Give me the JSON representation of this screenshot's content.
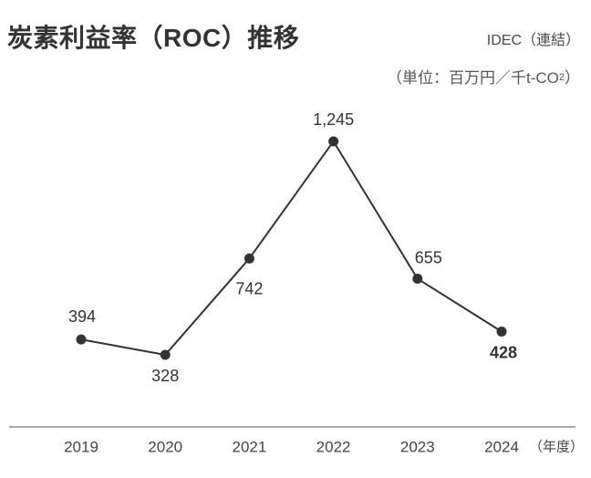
{
  "header": {
    "title": "炭素利益率（ROC）推移",
    "company": "IDEC（連結）",
    "unit_prefix": "（単位：百万円／千t-CO",
    "unit_sub": "2",
    "unit_suffix": "）"
  },
  "chart_data": {
    "type": "line",
    "title": "炭素利益率（ROC）推移",
    "categories": [
      "2019",
      "2020",
      "2021",
      "2022",
      "2023",
      "2024"
    ],
    "values": [
      394,
      328,
      742,
      1245,
      655,
      428
    ],
    "value_labels": [
      "394",
      "328",
      "742",
      "1,245",
      "655",
      "428"
    ],
    "x_axis_note": "（年度）",
    "xlabel": "年度",
    "unit": "百万円／千t-CO2",
    "ylim": [
      0,
      1400
    ],
    "grid": "off",
    "legend": "none",
    "emphasized_index": 5,
    "line_color": "#333333",
    "point_color": "#333333",
    "label_color": "#333333",
    "axis_color": "#8c8c8c",
    "tick_color": "#444444"
  }
}
